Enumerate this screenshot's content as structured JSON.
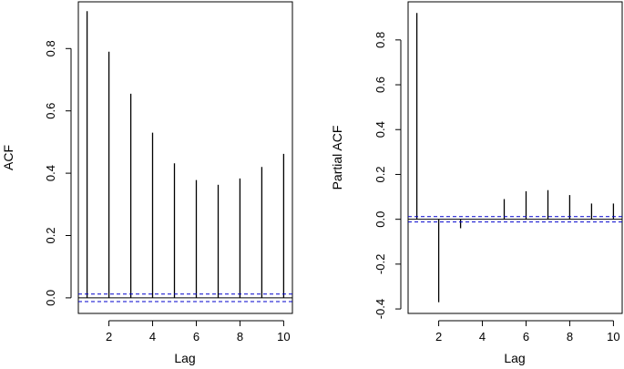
{
  "chart_data": [
    {
      "type": "bar",
      "style": "acf-spike",
      "x": [
        1,
        2,
        3,
        4,
        5,
        6,
        7,
        8,
        9,
        10
      ],
      "values": [
        0.92,
        0.79,
        0.655,
        0.53,
        0.432,
        0.378,
        0.363,
        0.383,
        0.42,
        0.462
      ],
      "xlabel": "Lag",
      "ylabel": "ACF",
      "xlim": [
        0.6,
        10.4
      ],
      "ylim": [
        -0.05,
        0.95
      ],
      "xticks": [
        2,
        4,
        6,
        8,
        10
      ],
      "xtick_labels": [
        "2",
        "4",
        "6",
        "8",
        "10"
      ],
      "yticks": [
        0.0,
        0.2,
        0.4,
        0.6,
        0.8
      ],
      "ytick_labels": [
        "0.0",
        "0.2",
        "0.4",
        "0.6",
        "0.8"
      ],
      "confidence_band": [
        -0.012,
        0.012
      ],
      "grid": false,
      "colors": {
        "spike": "#000000",
        "ci": "#0000cc"
      }
    },
    {
      "type": "bar",
      "style": "acf-spike",
      "x": [
        1,
        2,
        3,
        4,
        5,
        6,
        7,
        8,
        9,
        10
      ],
      "values": [
        0.92,
        -0.37,
        -0.04,
        0.0,
        0.09,
        0.125,
        0.13,
        0.108,
        0.07,
        0.07
      ],
      "xlabel": "Lag",
      "ylabel": "Partial ACF",
      "xlim": [
        0.6,
        10.4
      ],
      "ylim": [
        -0.42,
        0.97
      ],
      "xticks": [
        2,
        4,
        6,
        8,
        10
      ],
      "xtick_labels": [
        "2",
        "4",
        "6",
        "8",
        "10"
      ],
      "yticks": [
        -0.4,
        -0.2,
        0.0,
        0.2,
        0.4,
        0.6,
        0.8
      ],
      "ytick_labels": [
        "-0.4",
        "-0.2",
        "0.0",
        "0.2",
        "0.4",
        "0.6",
        "0.8"
      ],
      "confidence_band": [
        -0.012,
        0.012
      ],
      "grid": false,
      "colors": {
        "spike": "#000000",
        "ci": "#0000cc"
      }
    }
  ]
}
